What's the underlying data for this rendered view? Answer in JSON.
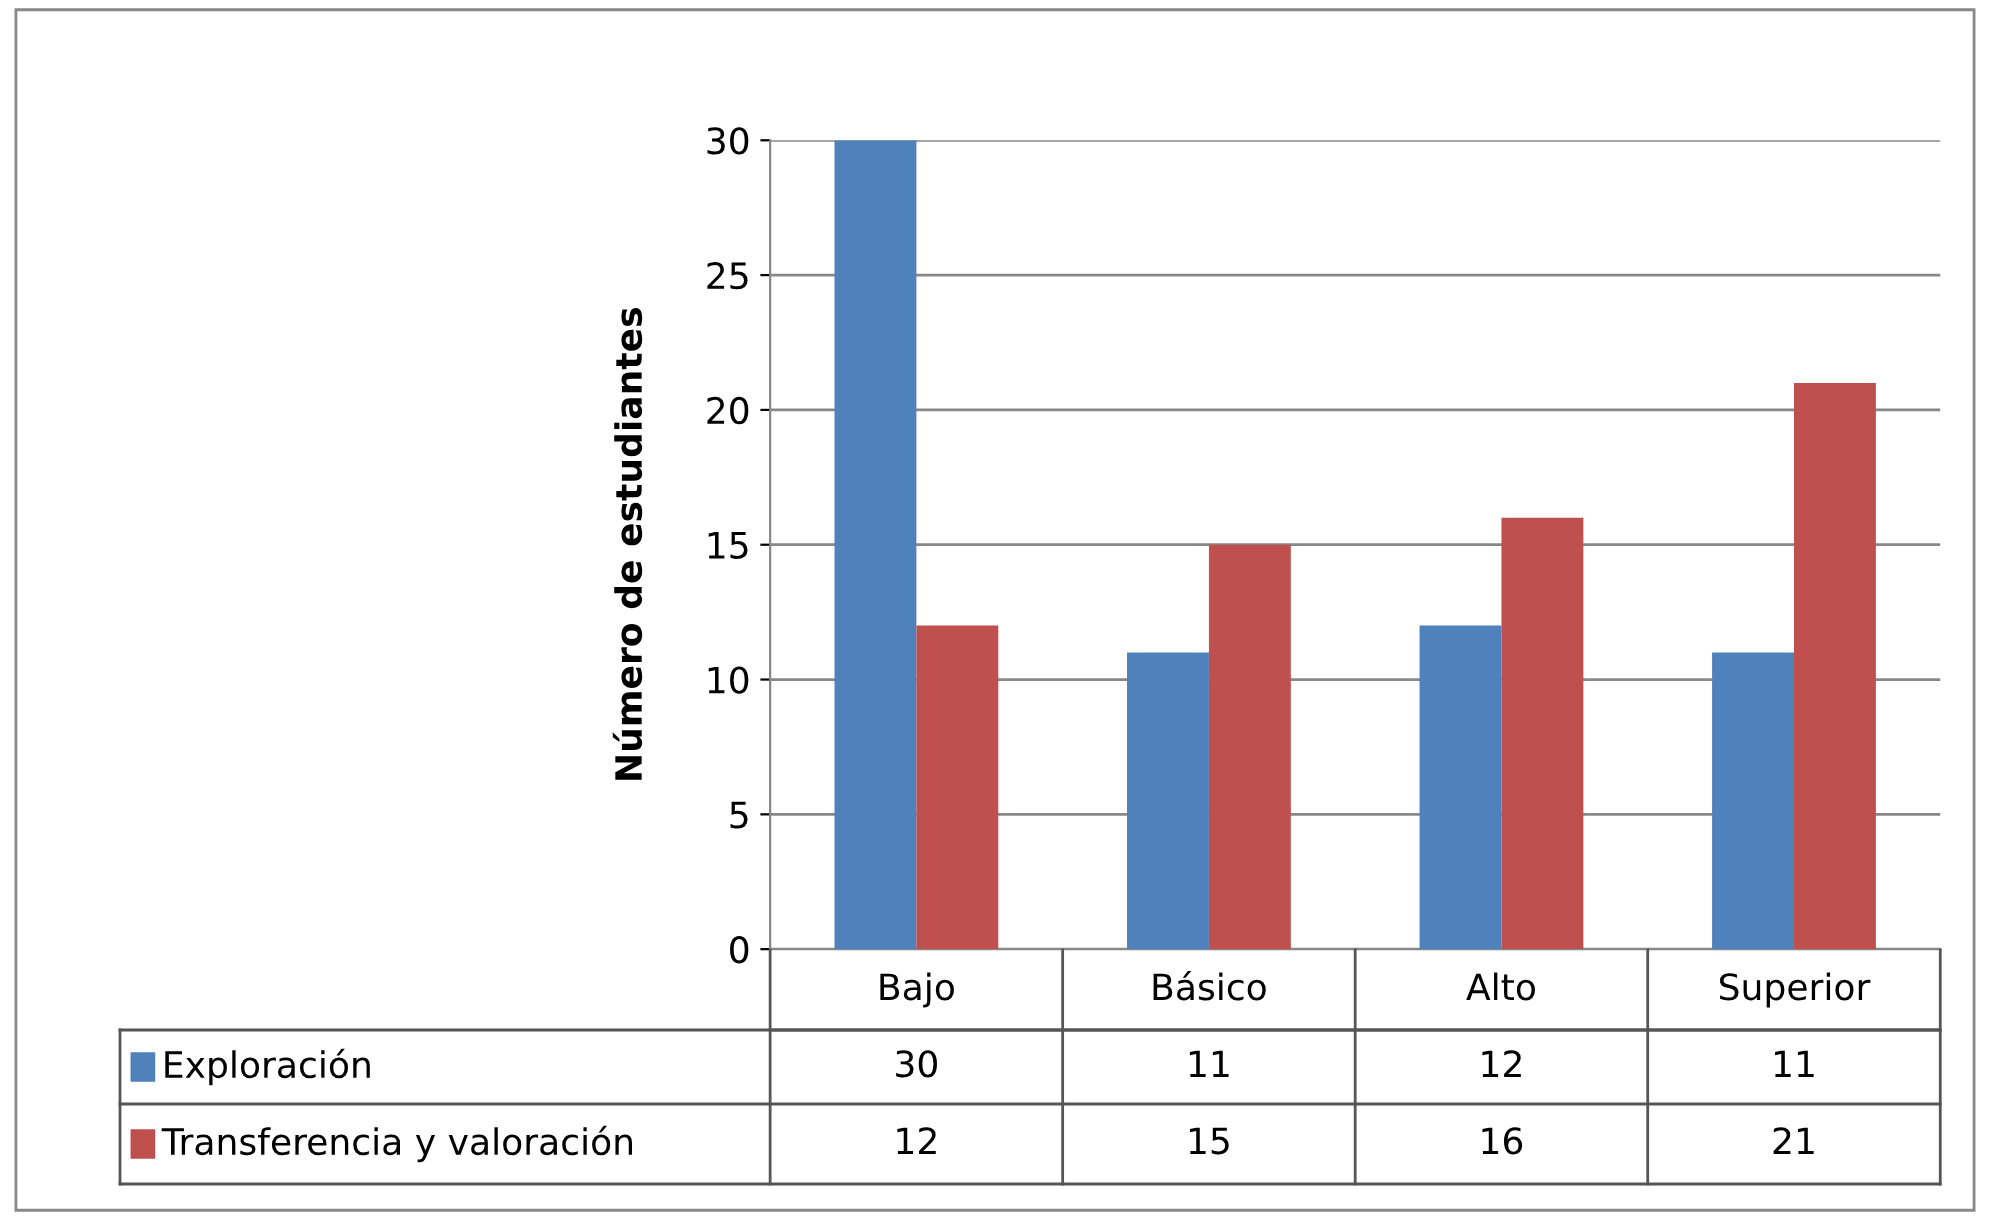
{
  "chart_data": {
    "type": "bar",
    "ylabel": "Número de estudiantes",
    "categories": [
      "Bajo",
      "Básico",
      "Alto",
      "Superior"
    ],
    "series": [
      {
        "name": "Exploración",
        "color": "#4f81bd",
        "values": [
          30,
          11,
          12,
          11
        ]
      },
      {
        "name": "Transferencia y valoración",
        "color": "#c0504d",
        "values": [
          12,
          15,
          16,
          21
        ]
      }
    ],
    "ylim": [
      0,
      30
    ],
    "yticks": [
      0,
      5,
      10,
      15,
      20,
      25,
      30
    ],
    "grid": "y",
    "data_labels": true,
    "legend": "bottom"
  }
}
